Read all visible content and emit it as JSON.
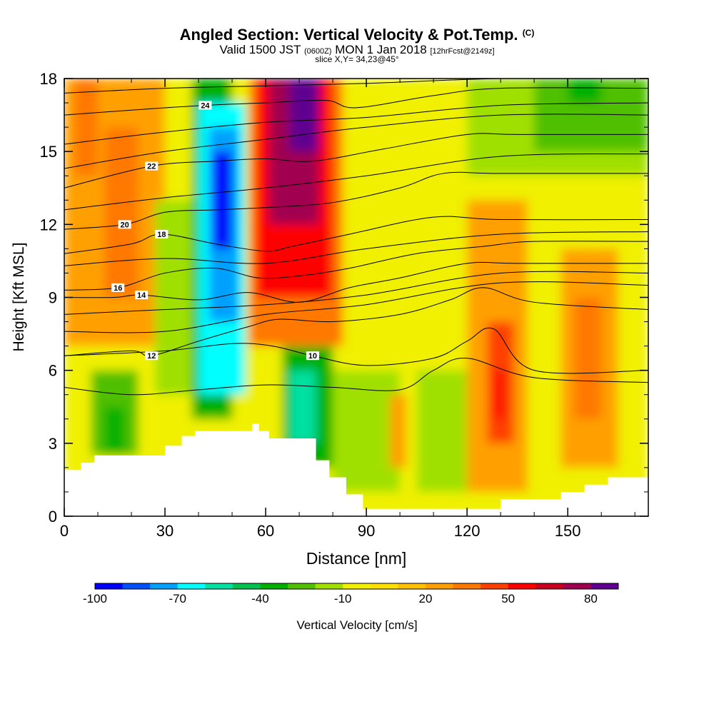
{
  "header": {
    "title": "Angled Section: Vertical Velocity & Pot.Temp.",
    "title_unit": "(C)",
    "valid_prefix": "Valid 1500 JST",
    "valid_utc": "(0600Z)",
    "valid_date": "MON 1 Jan 2018",
    "forecast": "[12hrFcst@2149z]",
    "slice": "slice X,Y= 34,23@45°"
  },
  "chart_data": {
    "type": "heatmap",
    "xlabel": "Distance [nm]",
    "ylabel": "Height [Kft MSL]",
    "xlim": [
      0,
      174
    ],
    "ylim": [
      0,
      18
    ],
    "x_ticks": [
      0,
      30,
      60,
      90,
      120,
      150
    ],
    "y_ticks": [
      0,
      3,
      6,
      9,
      12,
      15,
      18
    ],
    "colorbar": {
      "label": "Vertical Velocity [cm/s]",
      "ticks": [
        -100,
        -70,
        -40,
        -10,
        20,
        50,
        80
      ],
      "bins": [
        -100,
        -90,
        -80,
        -70,
        -60,
        -50,
        -40,
        -30,
        -20,
        -10,
        0,
        10,
        20,
        30,
        40,
        50,
        60,
        70,
        80,
        90
      ],
      "colors": [
        "#0000ff",
        "#0050ff",
        "#00a0ff",
        "#00ffff",
        "#00e0a0",
        "#00c050",
        "#00b000",
        "#50c000",
        "#a0e000",
        "#f0f000",
        "#ffe000",
        "#ffc000",
        "#ffa000",
        "#ff7800",
        "#ff4000",
        "#ff0000",
        "#c8001e",
        "#a00050",
        "#600090"
      ]
    },
    "terrain": [
      [
        0,
        1.9
      ],
      [
        5,
        2.2
      ],
      [
        9,
        2.5
      ],
      [
        27,
        2.5
      ],
      [
        30,
        2.9
      ],
      [
        35,
        3.3
      ],
      [
        39,
        3.5
      ],
      [
        52,
        3.5
      ],
      [
        56,
        3.8
      ],
      [
        58,
        3.5
      ],
      [
        61,
        3.2
      ],
      [
        69,
        3.2
      ],
      [
        75,
        2.3
      ],
      [
        79,
        1.6
      ],
      [
        84,
        0.9
      ],
      [
        89,
        0.3
      ],
      [
        95,
        0.3
      ],
      [
        124,
        0.3
      ],
      [
        130,
        0.7
      ],
      [
        142,
        0.7
      ],
      [
        148,
        1.0
      ],
      [
        155,
        1.3
      ],
      [
        162,
        1.6
      ],
      [
        174,
        1.6
      ]
    ],
    "velocity_cells": [
      {
        "x": [
          0,
          174
        ],
        "y": [
          0,
          18
        ],
        "v": -5
      },
      {
        "x": [
          0,
          30
        ],
        "y": [
          7,
          18
        ],
        "v": 20
      },
      {
        "x": [
          12,
          22
        ],
        "y": [
          9,
          16
        ],
        "v": 35
      },
      {
        "x": [
          3,
          10
        ],
        "y": [
          14,
          18
        ],
        "v": 35
      },
      {
        "x": [
          8,
          22
        ],
        "y": [
          2.5,
          6
        ],
        "v": -30
      },
      {
        "x": [
          12,
          18
        ],
        "y": [
          2.5,
          4.5
        ],
        "v": -40
      },
      {
        "x": [
          27,
          40
        ],
        "y": [
          5,
          13
        ],
        "v": -15
      },
      {
        "x": [
          38,
          50
        ],
        "y": [
          4,
          18
        ],
        "v": -40
      },
      {
        "x": [
          40,
          54
        ],
        "y": [
          5,
          17
        ],
        "v": -70
      },
      {
        "x": [
          43,
          52
        ],
        "y": [
          8,
          16
        ],
        "v": -80
      },
      {
        "x": [
          44,
          50
        ],
        "y": [
          11,
          15
        ],
        "v": -95
      },
      {
        "x": [
          55,
          83
        ],
        "y": [
          7,
          18
        ],
        "v": 30
      },
      {
        "x": [
          57,
          80
        ],
        "y": [
          9,
          18
        ],
        "v": 50
      },
      {
        "x": [
          61,
          76
        ],
        "y": [
          12,
          18
        ],
        "v": 70
      },
      {
        "x": [
          67,
          76
        ],
        "y": [
          15,
          18
        ],
        "v": 85
      },
      {
        "x": [
          65,
          80
        ],
        "y": [
          2,
          7
        ],
        "v": -40
      },
      {
        "x": [
          67,
          75
        ],
        "y": [
          3,
          6
        ],
        "v": -55
      },
      {
        "x": [
          80,
          100
        ],
        "y": [
          1,
          6
        ],
        "v": -15
      },
      {
        "x": [
          97,
          102
        ],
        "y": [
          2,
          5
        ],
        "v": 20
      },
      {
        "x": [
          105,
          120
        ],
        "y": [
          1,
          6
        ],
        "v": -15
      },
      {
        "x": [
          120,
          138
        ],
        "y": [
          1,
          13
        ],
        "v": 20
      },
      {
        "x": [
          126,
          134
        ],
        "y": [
          3,
          8
        ],
        "v": 40
      },
      {
        "x": [
          128,
          131
        ],
        "y": [
          4,
          6
        ],
        "v": 50
      },
      {
        "x": [
          148,
          165
        ],
        "y": [
          2,
          11
        ],
        "v": 20
      },
      {
        "x": [
          152,
          160
        ],
        "y": [
          4,
          9
        ],
        "v": 30
      },
      {
        "x": [
          120,
          174
        ],
        "y": [
          14,
          18
        ],
        "v": -15
      },
      {
        "x": [
          140,
          174
        ],
        "y": [
          15,
          18
        ],
        "v": -25
      },
      {
        "x": [
          150,
          160
        ],
        "y": [
          17,
          18
        ],
        "v": -40
      }
    ],
    "theta_contours": [
      {
        "value": 10,
        "label_pos": [
          74,
          6.6
        ],
        "points": [
          [
            0,
            6.6
          ],
          [
            30,
            6.8
          ],
          [
            50,
            7.1
          ],
          [
            62,
            7.0
          ],
          [
            74,
            6.6
          ],
          [
            90,
            6.2
          ],
          [
            110,
            6.5
          ],
          [
            120,
            7.2
          ],
          [
            128,
            7.7
          ],
          [
            140,
            6.0
          ],
          [
            174,
            6.0
          ]
        ]
      },
      {
        "value": 12,
        "label_pos": [
          26,
          6.6
        ],
        "points": [
          [
            0,
            6.6
          ],
          [
            20,
            6.8
          ],
          [
            26,
            6.6
          ],
          [
            40,
            7.2
          ],
          [
            55,
            7.8
          ],
          [
            64,
            8.1
          ],
          [
            80,
            8.0
          ],
          [
            100,
            8.3
          ],
          [
            115,
            8.9
          ],
          [
            125,
            9.4
          ],
          [
            140,
            8.8
          ],
          [
            174,
            8.5
          ]
        ]
      },
      {
        "value": 14,
        "label_pos": [
          23,
          9.1
        ],
        "points": [
          [
            0,
            9.0
          ],
          [
            15,
            9.0
          ],
          [
            23,
            9.1
          ],
          [
            40,
            8.9
          ],
          [
            55,
            9.2
          ],
          [
            70,
            8.8
          ],
          [
            85,
            9.4
          ],
          [
            100,
            9.8
          ],
          [
            120,
            10.4
          ],
          [
            135,
            10.4
          ],
          [
            174,
            10.4
          ]
        ]
      },
      {
        "value": 16,
        "label_pos": [
          16,
          9.4
        ],
        "points": [
          [
            0,
            9.3
          ],
          [
            16,
            9.4
          ],
          [
            30,
            10.0
          ],
          [
            45,
            10.2
          ],
          [
            58,
            9.8
          ],
          [
            71,
            9.9
          ],
          [
            85,
            10.2
          ],
          [
            105,
            10.8
          ],
          [
            125,
            11.1
          ],
          [
            140,
            11.3
          ],
          [
            174,
            11.3
          ]
        ]
      },
      {
        "value": 18,
        "label_pos": [
          29,
          11.6
        ],
        "points": [
          [
            0,
            10.8
          ],
          [
            20,
            11.2
          ],
          [
            29,
            11.6
          ],
          [
            45,
            11.2
          ],
          [
            60,
            10.9
          ],
          [
            68,
            11.1
          ],
          [
            85,
            11.6
          ],
          [
            110,
            12.3
          ],
          [
            130,
            12.2
          ],
          [
            174,
            12.2
          ]
        ]
      },
      {
        "value": 20,
        "label_pos": [
          18,
          12.0
        ],
        "points": [
          [
            0,
            11.8
          ],
          [
            18,
            12.0
          ],
          [
            30,
            12.5
          ],
          [
            45,
            12.6
          ],
          [
            61,
            12.7
          ],
          [
            80,
            12.9
          ],
          [
            100,
            13.5
          ],
          [
            113,
            14.1
          ],
          [
            130,
            14.1
          ],
          [
            174,
            14.1
          ]
        ]
      },
      {
        "value": 22,
        "label_pos": [
          26,
          14.4
        ],
        "points": [
          [
            0,
            13.5
          ],
          [
            26,
            14.4
          ],
          [
            45,
            14.6
          ],
          [
            60,
            14.7
          ],
          [
            74,
            14.6
          ],
          [
            95,
            15.1
          ],
          [
            120,
            15.7
          ],
          [
            135,
            15.7
          ],
          [
            174,
            15.7
          ]
        ]
      },
      {
        "value": 24,
        "label_pos": [
          42,
          16.9
        ],
        "points": [
          [
            0,
            16.5
          ],
          [
            20,
            16.7
          ],
          [
            42,
            16.9
          ],
          [
            60,
            17.0
          ],
          [
            78,
            17.1
          ],
          [
            87,
            16.8
          ],
          [
            110,
            17.3
          ],
          [
            130,
            17.6
          ],
          [
            174,
            17.6
          ]
        ]
      }
    ],
    "thin_contours": [
      [
        [
          0,
          5.3
        ],
        [
          20,
          5.0
        ],
        [
          40,
          5.2
        ],
        [
          60,
          5.4
        ],
        [
          80,
          5.3
        ],
        [
          100,
          5.2
        ],
        [
          110,
          6.0
        ],
        [
          120,
          6.5
        ],
        [
          140,
          5.7
        ],
        [
          174,
          5.5
        ]
      ],
      [
        [
          0,
          7.6
        ],
        [
          30,
          7.6
        ],
        [
          60,
          8.3
        ],
        [
          90,
          8.7
        ],
        [
          130,
          9.6
        ],
        [
          174,
          9.5
        ]
      ],
      [
        [
          0,
          8.3
        ],
        [
          30,
          8.5
        ],
        [
          60,
          8.7
        ],
        [
          90,
          9.1
        ],
        [
          130,
          10.0
        ],
        [
          174,
          10.0
        ]
      ],
      [
        [
          0,
          10.3
        ],
        [
          30,
          10.6
        ],
        [
          60,
          10.4
        ],
        [
          90,
          11.0
        ],
        [
          130,
          11.6
        ],
        [
          174,
          11.7
        ]
      ],
      [
        [
          0,
          12.6
        ],
        [
          30,
          13.1
        ],
        [
          60,
          13.5
        ],
        [
          90,
          14.0
        ],
        [
          130,
          14.8
        ],
        [
          174,
          14.9
        ]
      ],
      [
        [
          0,
          14.3
        ],
        [
          30,
          15.0
        ],
        [
          60,
          15.5
        ],
        [
          90,
          16.0
        ],
        [
          130,
          16.5
        ],
        [
          174,
          16.5
        ]
      ],
      [
        [
          0,
          15.3
        ],
        [
          30,
          15.8
        ],
        [
          60,
          16.2
        ],
        [
          90,
          16.4
        ],
        [
          130,
          16.9
        ],
        [
          174,
          17.0
        ]
      ],
      [
        [
          0,
          17.4
        ],
        [
          30,
          17.6
        ],
        [
          60,
          17.7
        ],
        [
          90,
          17.8
        ],
        [
          130,
          18.0
        ],
        [
          174,
          18.0
        ]
      ]
    ]
  }
}
